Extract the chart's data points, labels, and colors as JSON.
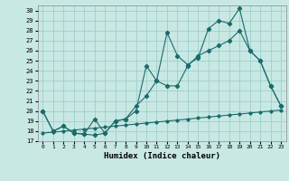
{
  "xlabel": "Humidex (Indice chaleur)",
  "bg_color": "#c8e8e4",
  "grid_color": "#9ecece",
  "line_color": "#1a6b6b",
  "xlim": [
    -0.5,
    23.5
  ],
  "ylim": [
    17,
    30.5
  ],
  "xticks": [
    0,
    1,
    2,
    3,
    4,
    5,
    6,
    7,
    8,
    9,
    10,
    11,
    12,
    13,
    14,
    15,
    16,
    17,
    18,
    19,
    20,
    21,
    22,
    23
  ],
  "yticks": [
    17,
    18,
    19,
    20,
    21,
    22,
    23,
    24,
    25,
    26,
    27,
    28,
    29,
    30
  ],
  "line1_x": [
    0,
    1,
    2,
    3,
    4,
    5,
    6,
    7,
    8,
    9,
    10,
    11,
    12,
    13,
    14,
    15,
    16,
    17,
    18,
    19,
    20,
    21,
    22,
    23
  ],
  "line1_y": [
    20,
    18,
    18.5,
    17.8,
    17.7,
    19.2,
    17.8,
    19.0,
    19.2,
    20.0,
    24.5,
    23.0,
    27.8,
    25.5,
    24.6,
    25.3,
    28.2,
    29.0,
    28.7,
    30.2,
    26.0,
    25.0,
    22.5,
    20.5
  ],
  "line2_x": [
    0,
    1,
    2,
    3,
    4,
    5,
    6,
    7,
    8,
    9,
    10,
    11,
    12,
    13,
    14,
    15,
    16,
    17,
    18,
    19,
    20,
    21,
    22,
    23
  ],
  "line2_y": [
    20,
    18,
    18.5,
    17.8,
    17.7,
    17.6,
    17.8,
    19.0,
    19.2,
    20.5,
    21.5,
    23.0,
    22.5,
    22.5,
    24.5,
    25.5,
    26.0,
    26.5,
    27.0,
    28.0,
    26.0,
    25.0,
    22.5,
    20.5
  ],
  "line3_x": [
    0,
    1,
    2,
    3,
    4,
    5,
    6,
    7,
    8,
    9,
    10,
    11,
    12,
    13,
    14,
    15,
    16,
    17,
    18,
    19,
    20,
    21,
    22,
    23
  ],
  "line3_y": [
    17.8,
    17.9,
    18.0,
    18.1,
    18.2,
    18.3,
    18.4,
    18.5,
    18.6,
    18.7,
    18.8,
    18.9,
    19.0,
    19.1,
    19.2,
    19.3,
    19.4,
    19.5,
    19.6,
    19.7,
    19.8,
    19.9,
    20.0,
    20.1
  ]
}
